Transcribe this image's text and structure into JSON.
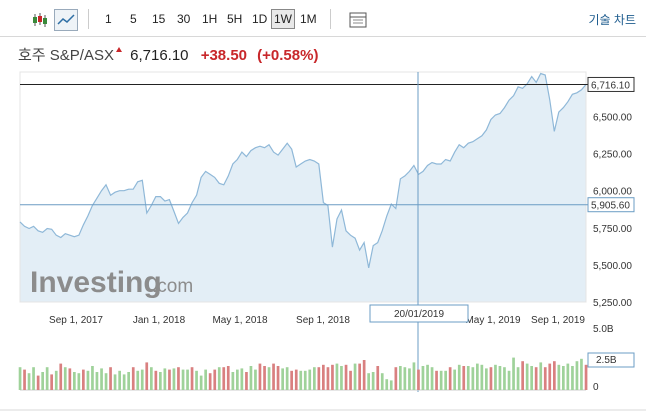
{
  "toolbar": {
    "icons": [
      {
        "name": "candlestick-chart-icon"
      },
      {
        "name": "line-chart-icon",
        "active": true
      }
    ],
    "intervals": [
      "1",
      "5",
      "15",
      "30",
      "1H",
      "5H",
      "1D",
      "1W",
      "1M"
    ],
    "active_interval": "1W",
    "settings_icon": "table-icon",
    "tech_chart_label": "기술 차트"
  },
  "header": {
    "name": "호주 S&P/ASX",
    "price": "6,716.10",
    "change": "+38.50",
    "change_pct": "(+0.58%)"
  },
  "watermark": {
    "brand": "Investing",
    "suffix": ".com"
  },
  "crosshair": {
    "date_label": "20/01/2019",
    "price_label": "5,905.60"
  },
  "last_price_label": "6,716.10",
  "y_ticks": [
    "6,500.00",
    "6,250.00",
    "6,000.00",
    "5,750.00",
    "5,500.00",
    "5,250.00"
  ],
  "x_ticks": [
    "Sep 1, 2017",
    "Jan 1, 2018",
    "May 1, 2018",
    "Sep 1, 2018",
    "May 1, 2019",
    "Sep 1, 2019"
  ],
  "volume_ticks": [
    "5.0B",
    "2.5B",
    "0"
  ],
  "colors": {
    "line": "#8fb8d8",
    "area": "#e3eef6",
    "vol_up": "#9fd29a",
    "vol_down": "#d98080",
    "accent": "#c8272a"
  },
  "chart_data": {
    "type": "area",
    "y_range": [
      5250,
      6800
    ],
    "price": [
      5790,
      5760,
      5745,
      5760,
      5730,
      5720,
      5745,
      5740,
      5700,
      5685,
      5710,
      5700,
      5690,
      5700,
      5770,
      5830,
      5900,
      5950,
      6000,
      6040,
      5970,
      5990,
      6000,
      6000,
      6010,
      6010,
      6060,
      6070,
      5850,
      5900,
      5960,
      5960,
      5930,
      5940,
      5860,
      5780,
      5820,
      5850,
      5920,
      5970,
      6090,
      6130,
      6110,
      6090,
      6050,
      6040,
      6100,
      6180,
      6210,
      6260,
      6230,
      6270,
      6290,
      6300,
      6290,
      6310,
      6260,
      6240,
      6280,
      6320,
      6280,
      6160,
      6180,
      6200,
      6210,
      6200,
      6180,
      5920,
      5900,
      5620,
      5810,
      5870,
      5730,
      5700,
      5680,
      5600,
      5650,
      5480,
      5630,
      5650,
      5730,
      5830,
      5910,
      5880,
      6080,
      6100,
      6130,
      6170,
      6110,
      6130,
      6170,
      6190,
      6180,
      6180,
      6210,
      6200,
      6260,
      6310,
      6290,
      6320,
      6330,
      6350,
      6370,
      6410,
      6480,
      6510,
      6520,
      6560,
      6610,
      6640,
      6700,
      6690,
      6720,
      6770,
      6730,
      6790,
      6780,
      6610,
      6400,
      6530,
      6560,
      6600,
      6650,
      6660,
      6680,
      6716
    ],
    "volume_labels_note": "",
    "volume": [
      1.9,
      1.7,
      1.4,
      1.9,
      1.2,
      1.5,
      1.9,
      1.3,
      1.6,
      2.2,
      1.9,
      1.8,
      1.5,
      1.4,
      1.7,
      1.6,
      2.0,
      1.5,
      1.8,
      1.4,
      1.9,
      1.3,
      1.6,
      1.3,
      1.5,
      1.9,
      1.6,
      1.7,
      2.3,
      1.9,
      1.6,
      1.5,
      1.8,
      1.7,
      1.8,
      1.9,
      1.7,
      1.7,
      1.9,
      1.6,
      1.2,
      1.7,
      1.4,
      1.7,
      1.9,
      1.9,
      2.0,
      1.5,
      1.7,
      1.8,
      1.5,
      2.0,
      1.7,
      2.2,
      2.0,
      1.9,
      2.2,
      2.0,
      1.8,
      1.9,
      1.6,
      1.7,
      1.6,
      1.6,
      1.7,
      1.9,
      1.9,
      2.1,
      1.9,
      2.1,
      2.2,
      2.0,
      2.1,
      1.6,
      2.2,
      2.2,
      2.5,
      1.4,
      1.5,
      2.0,
      1.4,
      0.9,
      0.8,
      1.9,
      2.0,
      1.9,
      1.8,
      2.3,
      1.7,
      2.0,
      2.1,
      1.9,
      1.6,
      1.6,
      1.6,
      1.9,
      1.7,
      2.1,
      2.0,
      2.0,
      1.9,
      2.2,
      2.1,
      1.8,
      1.9,
      2.1,
      2.0,
      1.9,
      1.6,
      2.7,
      1.9,
      2.4,
      2.2,
      2.0,
      1.9,
      2.3,
      1.9,
      2.2,
      2.4,
      2.1,
      2.0,
      2.2,
      2.0,
      2.4,
      2.6,
      2.1
    ],
    "volume_up": [
      true,
      false,
      true,
      true,
      false,
      true,
      true,
      false,
      true,
      false,
      true,
      false,
      true,
      true,
      false,
      true,
      true,
      true,
      true,
      true,
      false,
      true,
      true,
      true,
      true,
      false,
      true,
      true,
      false,
      true,
      false,
      true,
      true,
      false,
      true,
      false,
      true,
      true,
      false,
      true,
      true,
      true,
      false,
      false,
      true,
      false,
      false,
      true,
      true,
      true,
      false,
      true,
      true,
      false,
      false,
      true,
      false,
      false,
      true,
      true,
      false,
      false,
      true,
      true,
      true,
      true,
      false,
      false,
      false,
      false,
      true,
      true,
      false,
      false,
      true,
      false,
      false,
      true,
      true,
      false,
      true,
      true,
      true,
      false,
      true,
      true,
      true,
      true,
      false,
      true,
      true,
      true,
      false,
      true,
      true,
      false,
      true,
      true,
      false,
      true,
      true,
      true,
      true,
      true,
      false,
      true,
      true,
      true,
      true,
      true,
      true,
      false,
      true,
      true,
      false,
      true,
      false,
      false,
      false,
      true,
      true,
      true,
      true,
      true,
      true,
      false
    ],
    "volume_range": [
      0,
      5
    ]
  }
}
